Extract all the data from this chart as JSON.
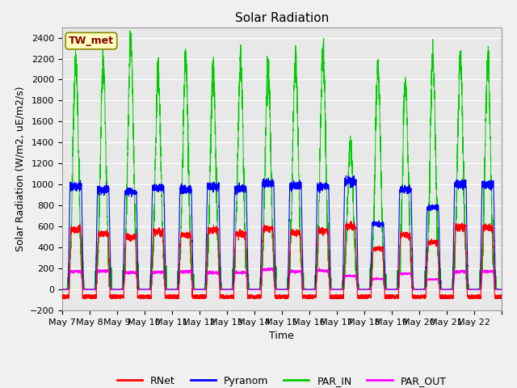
{
  "title": "Solar Radiation",
  "ylabel": "Solar Radiation (W/m2, uE/m2/s)",
  "xlabel": "Time",
  "station_label": "TW_met",
  "ylim": [
    -200,
    2500
  ],
  "yticks": [
    -200,
    0,
    200,
    400,
    600,
    800,
    1000,
    1200,
    1400,
    1600,
    1800,
    2000,
    2200,
    2400
  ],
  "num_days": 16,
  "start_day": 7,
  "x_tick_labels": [
    "May 7",
    "May 8",
    "May 9",
    "May 10",
    "May 11",
    "May 12",
    "May 13",
    "May 14",
    "May 15",
    "May 16",
    "May 17",
    "May 18",
    "May 19",
    "May 20",
    "May 21",
    "May 22"
  ],
  "colors": {
    "RNet": "#ff0000",
    "Pyranom": "#0000ff",
    "PAR_IN": "#00cc00",
    "PAR_OUT": "#ff00ff"
  },
  "background_color": "#e8e8e8",
  "grid_color": "#ffffff",
  "title_fontsize": 11,
  "axis_fontsize": 9,
  "tick_fontsize": 8,
  "legend_fontsize": 9,
  "par_in_peaks": [
    2180,
    2150,
    2380,
    2050,
    2200,
    2100,
    2170,
    2150,
    2200,
    2280,
    1380,
    2100,
    1950,
    2200,
    2200,
    2200
  ],
  "pyranom_peaks": [
    980,
    950,
    930,
    970,
    950,
    980,
    960,
    1010,
    990,
    980,
    1030,
    620,
    950,
    780,
    1000,
    1000
  ],
  "rnet_peaks": [
    570,
    530,
    500,
    550,
    520,
    570,
    530,
    580,
    540,
    560,
    600,
    390,
    520,
    450,
    590,
    590
  ],
  "par_out_peaks": [
    170,
    175,
    160,
    165,
    170,
    160,
    160,
    190,
    170,
    180,
    130,
    100,
    150,
    95,
    170,
    170
  ]
}
